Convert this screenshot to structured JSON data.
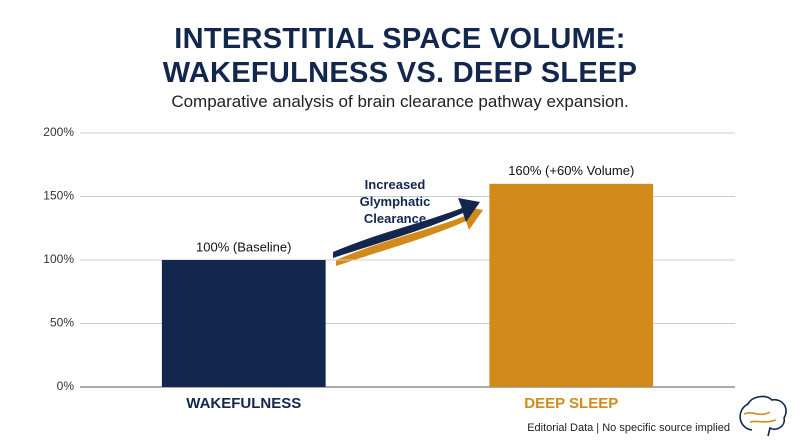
{
  "chart_data": {
    "type": "bar",
    "title": "INTERSTITIAL SPACE VOLUME: WAKEFULNESS VS. DEEP SLEEP",
    "subtitle": "Comparative analysis of brain clearance pathway expansion.",
    "categories": [
      "WAKEFULNESS",
      "DEEP SLEEP"
    ],
    "values": [
      100,
      160
    ],
    "value_labels": [
      "100% (Baseline)",
      "160% (+60% Volume)"
    ],
    "colors": [
      "#13264d",
      "#d28a1a"
    ],
    "ylim": [
      0,
      200
    ],
    "yticks": [
      {
        "value": 0,
        "label": "0%"
      },
      {
        "value": 50,
        "label": "50%"
      },
      {
        "value": 100,
        "label": "100%"
      },
      {
        "value": 150,
        "label": "150%"
      },
      {
        "value": 200,
        "label": "200%"
      }
    ],
    "grid": true,
    "annotation": "Increased Glymphatic Clearance",
    "source": "Editorial Data | No specific source implied"
  }
}
